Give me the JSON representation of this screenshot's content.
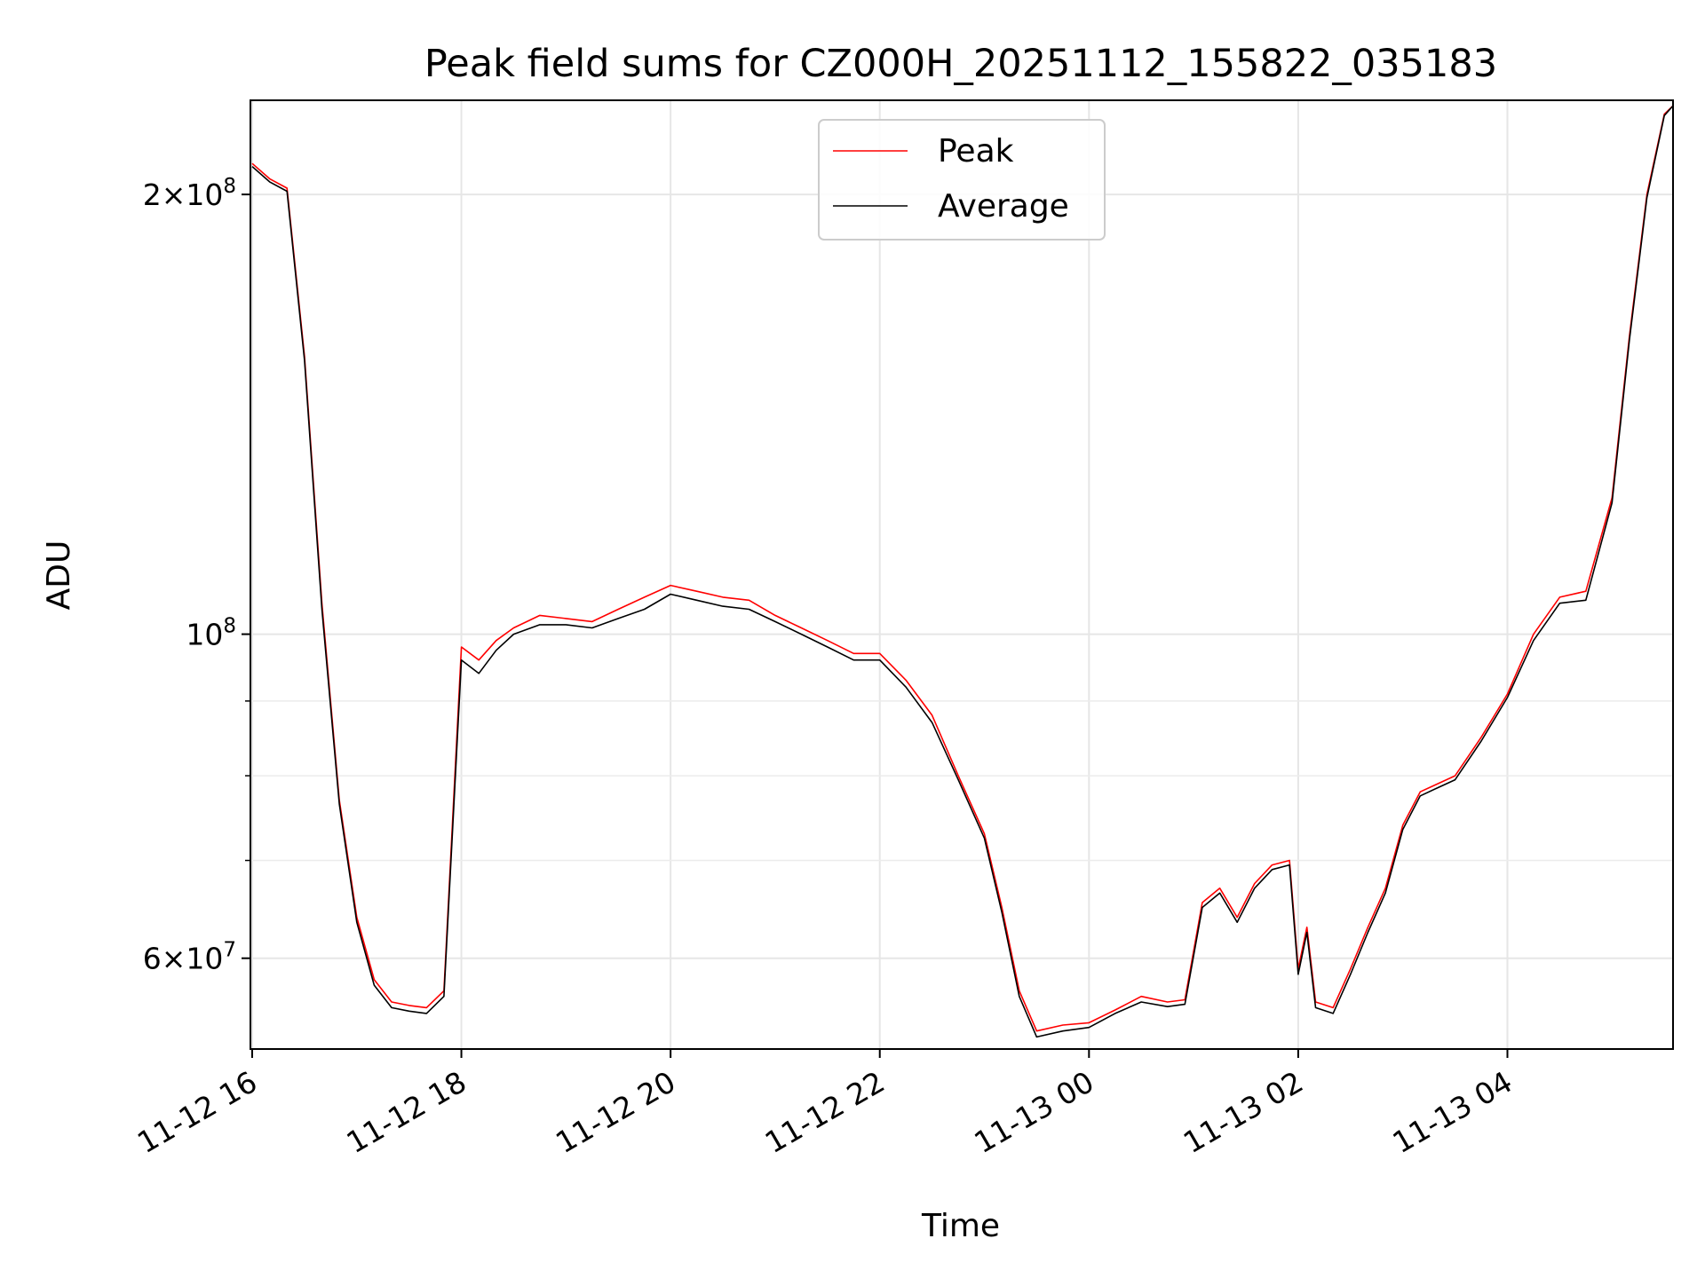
{
  "chart_data": {
    "type": "line",
    "title": "Peak field sums for CZ000H_20251112_155822_035183",
    "xlabel": "Time",
    "ylabel": "ADU",
    "yscale": "log",
    "xlim": [
      "2025-11-12T15:59",
      "2025-11-13T05:35"
    ],
    "ylim": [
      52000000,
      232000000
    ],
    "grid": true,
    "legend": {
      "position": "top-center"
    },
    "x_ticks": [
      {
        "value": "2025-11-12T16:00",
        "label": "11-12 16"
      },
      {
        "value": "2025-11-12T18:00",
        "label": "11-12 18"
      },
      {
        "value": "2025-11-12T20:00",
        "label": "11-12 20"
      },
      {
        "value": "2025-11-12T22:00",
        "label": "11-12 22"
      },
      {
        "value": "2025-11-13T00:00",
        "label": "11-13 00"
      },
      {
        "value": "2025-11-13T02:00",
        "label": "11-13 02"
      },
      {
        "value": "2025-11-13T04:00",
        "label": "11-13 04"
      }
    ],
    "y_ticks": [
      {
        "value": 60000000,
        "base": "6",
        "exp": "7"
      },
      {
        "value": 100000000,
        "base": "",
        "exp": "8"
      },
      {
        "value": 200000000,
        "base": "2",
        "exp": "8"
      }
    ],
    "y_minor_ticks": [
      70000000,
      80000000,
      90000000
    ],
    "series": [
      {
        "name": "Peak",
        "color": "#ff0000",
        "x": [
          "2025-11-12T16:00",
          "2025-11-12T16:10",
          "2025-11-12T16:20",
          "2025-11-12T16:30",
          "2025-11-12T16:40",
          "2025-11-12T16:50",
          "2025-11-12T17:00",
          "2025-11-12T17:10",
          "2025-11-12T17:20",
          "2025-11-12T17:30",
          "2025-11-12T17:40",
          "2025-11-12T17:50",
          "2025-11-12T18:00",
          "2025-11-12T18:10",
          "2025-11-12T18:20",
          "2025-11-12T18:30",
          "2025-11-12T18:45",
          "2025-11-12T19:00",
          "2025-11-12T19:15",
          "2025-11-12T19:30",
          "2025-11-12T19:45",
          "2025-11-12T20:00",
          "2025-11-12T20:15",
          "2025-11-12T20:30",
          "2025-11-12T20:45",
          "2025-11-12T21:00",
          "2025-11-12T21:15",
          "2025-11-12T21:30",
          "2025-11-12T21:45",
          "2025-11-12T22:00",
          "2025-11-12T22:15",
          "2025-11-12T22:30",
          "2025-11-12T22:45",
          "2025-11-12T23:00",
          "2025-11-12T23:10",
          "2025-11-12T23:20",
          "2025-11-12T23:30",
          "2025-11-12T23:45",
          "2025-11-13T00:00",
          "2025-11-13T00:15",
          "2025-11-13T00:30",
          "2025-11-13T00:45",
          "2025-11-13T00:55",
          "2025-11-13T01:05",
          "2025-11-13T01:15",
          "2025-11-13T01:25",
          "2025-11-13T01:35",
          "2025-11-13T01:45",
          "2025-11-13T01:55",
          "2025-11-13T02:00",
          "2025-11-13T02:05",
          "2025-11-13T02:10",
          "2025-11-13T02:20",
          "2025-11-13T02:30",
          "2025-11-13T02:40",
          "2025-11-13T02:50",
          "2025-11-13T03:00",
          "2025-11-13T03:10",
          "2025-11-13T03:20",
          "2025-11-13T03:30",
          "2025-11-13T03:45",
          "2025-11-13T04:00",
          "2025-11-13T04:15",
          "2025-11-13T04:30",
          "2025-11-13T04:45",
          "2025-11-13T05:00",
          "2025-11-13T05:10",
          "2025-11-13T05:20",
          "2025-11-13T05:30",
          "2025-11-13T05:35"
        ],
        "y": [
          210000000,
          205000000,
          202000000,
          155000000,
          105000000,
          77000000,
          64000000,
          58000000,
          56000000,
          55700000,
          55500000,
          57000000,
          98000000,
          96000000,
          99000000,
          101000000,
          103000000,
          102500000,
          102000000,
          104000000,
          106000000,
          108000000,
          107000000,
          106000000,
          105500000,
          103000000,
          101000000,
          99000000,
          97000000,
          97000000,
          93000000,
          88000000,
          80000000,
          73000000,
          65000000,
          57000000,
          53500000,
          54000000,
          54200000,
          55300000,
          56500000,
          56000000,
          56200000,
          65500000,
          67000000,
          64000000,
          67500000,
          69500000,
          70000000,
          59000000,
          63000000,
          56000000,
          55500000,
          59000000,
          63000000,
          67000000,
          74000000,
          78000000,
          79000000,
          80000000,
          85000000,
          91000000,
          100000000,
          106000000,
          107000000,
          124000000,
          160000000,
          200000000,
          227000000,
          230000000
        ]
      },
      {
        "name": "Average",
        "color": "#000000",
        "x": [
          "2025-11-12T16:00",
          "2025-11-12T16:10",
          "2025-11-12T16:20",
          "2025-11-12T16:30",
          "2025-11-12T16:40",
          "2025-11-12T16:50",
          "2025-11-12T17:00",
          "2025-11-12T17:10",
          "2025-11-12T17:20",
          "2025-11-12T17:30",
          "2025-11-12T17:40",
          "2025-11-12T17:50",
          "2025-11-12T18:00",
          "2025-11-12T18:10",
          "2025-11-12T18:20",
          "2025-11-12T18:30",
          "2025-11-12T18:45",
          "2025-11-12T19:00",
          "2025-11-12T19:15",
          "2025-11-12T19:30",
          "2025-11-12T19:45",
          "2025-11-12T20:00",
          "2025-11-12T20:15",
          "2025-11-12T20:30",
          "2025-11-12T20:45",
          "2025-11-12T21:00",
          "2025-11-12T21:15",
          "2025-11-12T21:30",
          "2025-11-12T21:45",
          "2025-11-12T22:00",
          "2025-11-12T22:15",
          "2025-11-12T22:30",
          "2025-11-12T22:45",
          "2025-11-12T23:00",
          "2025-11-12T23:10",
          "2025-11-12T23:20",
          "2025-11-12T23:30",
          "2025-11-12T23:45",
          "2025-11-13T00:00",
          "2025-11-13T00:15",
          "2025-11-13T00:30",
          "2025-11-13T00:45",
          "2025-11-13T00:55",
          "2025-11-13T01:05",
          "2025-11-13T01:15",
          "2025-11-13T01:25",
          "2025-11-13T01:35",
          "2025-11-13T01:45",
          "2025-11-13T01:55",
          "2025-11-13T02:00",
          "2025-11-13T02:05",
          "2025-11-13T02:10",
          "2025-11-13T02:20",
          "2025-11-13T02:30",
          "2025-11-13T02:40",
          "2025-11-13T02:50",
          "2025-11-13T03:00",
          "2025-11-13T03:10",
          "2025-11-13T03:20",
          "2025-11-13T03:30",
          "2025-11-13T03:45",
          "2025-11-13T04:00",
          "2025-11-13T04:15",
          "2025-11-13T04:30",
          "2025-11-13T04:45",
          "2025-11-13T05:00",
          "2025-11-13T05:10",
          "2025-11-13T05:20",
          "2025-11-13T05:30",
          "2025-11-13T05:35"
        ],
        "y": [
          209000000,
          204000000,
          201000000,
          154000000,
          104000000,
          76500000,
          63500000,
          57500000,
          55500000,
          55200000,
          55000000,
          56500000,
          96000000,
          94000000,
          97500000,
          100000000,
          101500000,
          101500000,
          101000000,
          102500000,
          104000000,
          106500000,
          105500000,
          104500000,
          104000000,
          102000000,
          100000000,
          98000000,
          96000000,
          96000000,
          92000000,
          87000000,
          79500000,
          72500000,
          64500000,
          56500000,
          53000000,
          53500000,
          53800000,
          55000000,
          56000000,
          55600000,
          55800000,
          65000000,
          66500000,
          63500000,
          67000000,
          69000000,
          69500000,
          58500000,
          62500000,
          55500000,
          55000000,
          58500000,
          62500000,
          66500000,
          73500000,
          77500000,
          78500000,
          79500000,
          84500000,
          90500000,
          99000000,
          105000000,
          105500000,
          123000000,
          159000000,
          199000000,
          226500000,
          230000000
        ]
      }
    ]
  }
}
